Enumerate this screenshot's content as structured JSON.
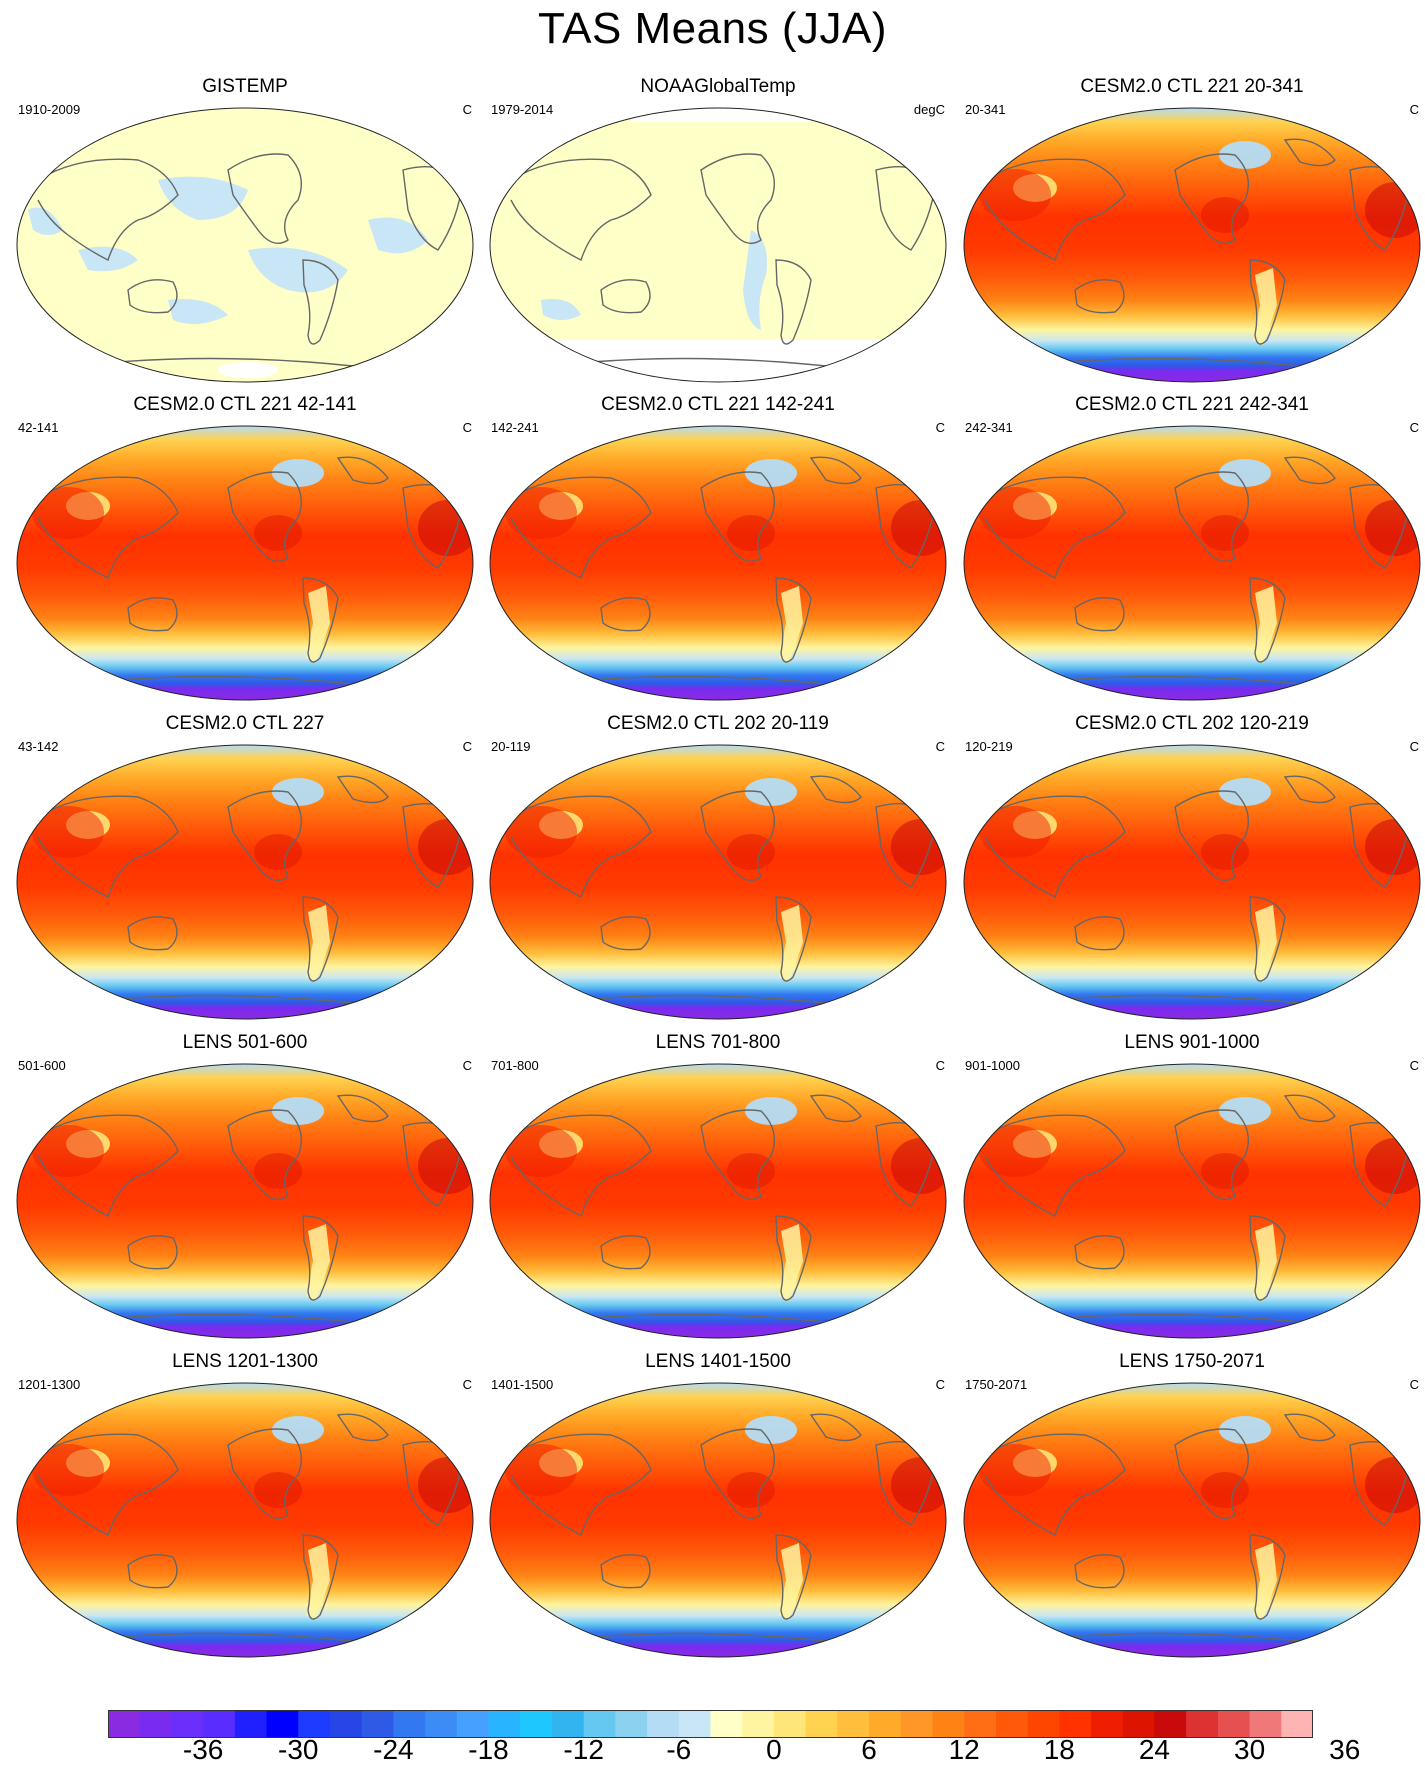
{
  "title": "TAS Means (JJA)",
  "panels": [
    {
      "title": "GISTEMP",
      "left": "1910-2009",
      "right": "C",
      "kind": "obs"
    },
    {
      "title": "NOAAGlobalTemp",
      "left": "1979-2014",
      "right": "degC",
      "kind": "obs2"
    },
    {
      "title": "CESM2.0 CTL 221 20-341",
      "left": "20-341",
      "right": "C",
      "kind": "model"
    },
    {
      "title": "CESM2.0 CTL 221 42-141",
      "left": "42-141",
      "right": "C",
      "kind": "model"
    },
    {
      "title": "CESM2.0 CTL 221 142-241",
      "left": "142-241",
      "right": "C",
      "kind": "model"
    },
    {
      "title": "CESM2.0 CTL 221 242-341",
      "left": "242-341",
      "right": "C",
      "kind": "model"
    },
    {
      "title": "CESM2.0 CTL 227",
      "left": "43-142",
      "right": "C",
      "kind": "model"
    },
    {
      "title": "CESM2.0 CTL 202 20-119",
      "left": "20-119",
      "right": "C",
      "kind": "model"
    },
    {
      "title": "CESM2.0 CTL 202 120-219",
      "left": "120-219",
      "right": "C",
      "kind": "model"
    },
    {
      "title": "LENS 501-600",
      "left": "501-600",
      "right": "C",
      "kind": "model"
    },
    {
      "title": "LENS 701-800",
      "left": "701-800",
      "right": "C",
      "kind": "model"
    },
    {
      "title": "LENS 901-1000",
      "left": "901-1000",
      "right": "C",
      "kind": "model"
    },
    {
      "title": "LENS 1201-1300",
      "left": "1201-1300",
      "right": "C",
      "kind": "model"
    },
    {
      "title": "LENS 1401-1500",
      "left": "1401-1500",
      "right": "C",
      "kind": "model"
    },
    {
      "title": "LENS 1750-2071",
      "left": "1750-2071",
      "right": "C",
      "kind": "model"
    }
  ],
  "colorbar": {
    "labels": [
      "-36",
      "-30",
      "-24",
      "-18",
      "-12",
      "-6",
      "0",
      "6",
      "12",
      "18",
      "24",
      "30",
      "36"
    ],
    "colors": [
      "#8a2be2",
      "#7a2bf0",
      "#6a2ffa",
      "#5a2dff",
      "#2020ff",
      "#0000ff",
      "#1e3cff",
      "#2846e6",
      "#2e5ae6",
      "#3278f0",
      "#3c8cf5",
      "#46a0ff",
      "#28b4ff",
      "#1ec8ff",
      "#32b4f0",
      "#64c8f0",
      "#8cd2f0",
      "#b4dcf5",
      "#c8e6f5",
      "#ffffc8",
      "#fff5a0",
      "#ffe678",
      "#ffd250",
      "#ffbe3c",
      "#ffaa28",
      "#ff9628",
      "#ff8214",
      "#ff6e14",
      "#ff5a0a",
      "#ff4600",
      "#ff3200",
      "#f01e00",
      "#dc1400",
      "#c80a0a",
      "#dc3232",
      "#e65050",
      "#f07878",
      "#ffb4b4"
    ]
  }
}
